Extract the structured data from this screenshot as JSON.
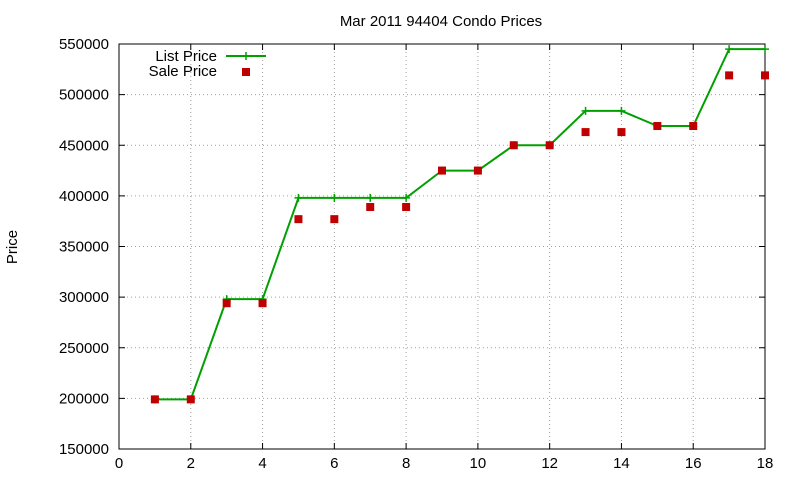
{
  "chart_data": {
    "type": "line",
    "title": "Mar 2011 94404 Condo Prices",
    "xlabel": "",
    "ylabel": "Price",
    "xlim": [
      0,
      18
    ],
    "ylim": [
      150000,
      550000
    ],
    "xticks": [
      0,
      2,
      4,
      6,
      8,
      10,
      12,
      14,
      16,
      18
    ],
    "yticks": [
      150000,
      200000,
      250000,
      300000,
      350000,
      400000,
      450000,
      500000,
      550000
    ],
    "grid": true,
    "legend_position": "top-left",
    "series": [
      {
        "name": "List Price",
        "style": "line-with-plus-markers",
        "color": "#00a000",
        "x": [
          1,
          2,
          3,
          4,
          5,
          6,
          7,
          8,
          9,
          10,
          11,
          12,
          13,
          14,
          15,
          16,
          17,
          18
        ],
        "values": [
          199000,
          199000,
          298000,
          298000,
          398000,
          398000,
          398000,
          398000,
          425000,
          425000,
          450000,
          450000,
          484000,
          484000,
          469000,
          469000,
          545000,
          545000
        ]
      },
      {
        "name": "Sale Price",
        "style": "square-markers",
        "color": "#c00000",
        "x": [
          1,
          2,
          3,
          4,
          5,
          6,
          7,
          8,
          9,
          10,
          11,
          12,
          13,
          14,
          15,
          16,
          17,
          18
        ],
        "values": [
          199000,
          199000,
          294000,
          294000,
          377000,
          377000,
          389000,
          389000,
          425000,
          425000,
          450000,
          450000,
          463000,
          463000,
          469000,
          469000,
          519000,
          519000
        ]
      }
    ]
  }
}
